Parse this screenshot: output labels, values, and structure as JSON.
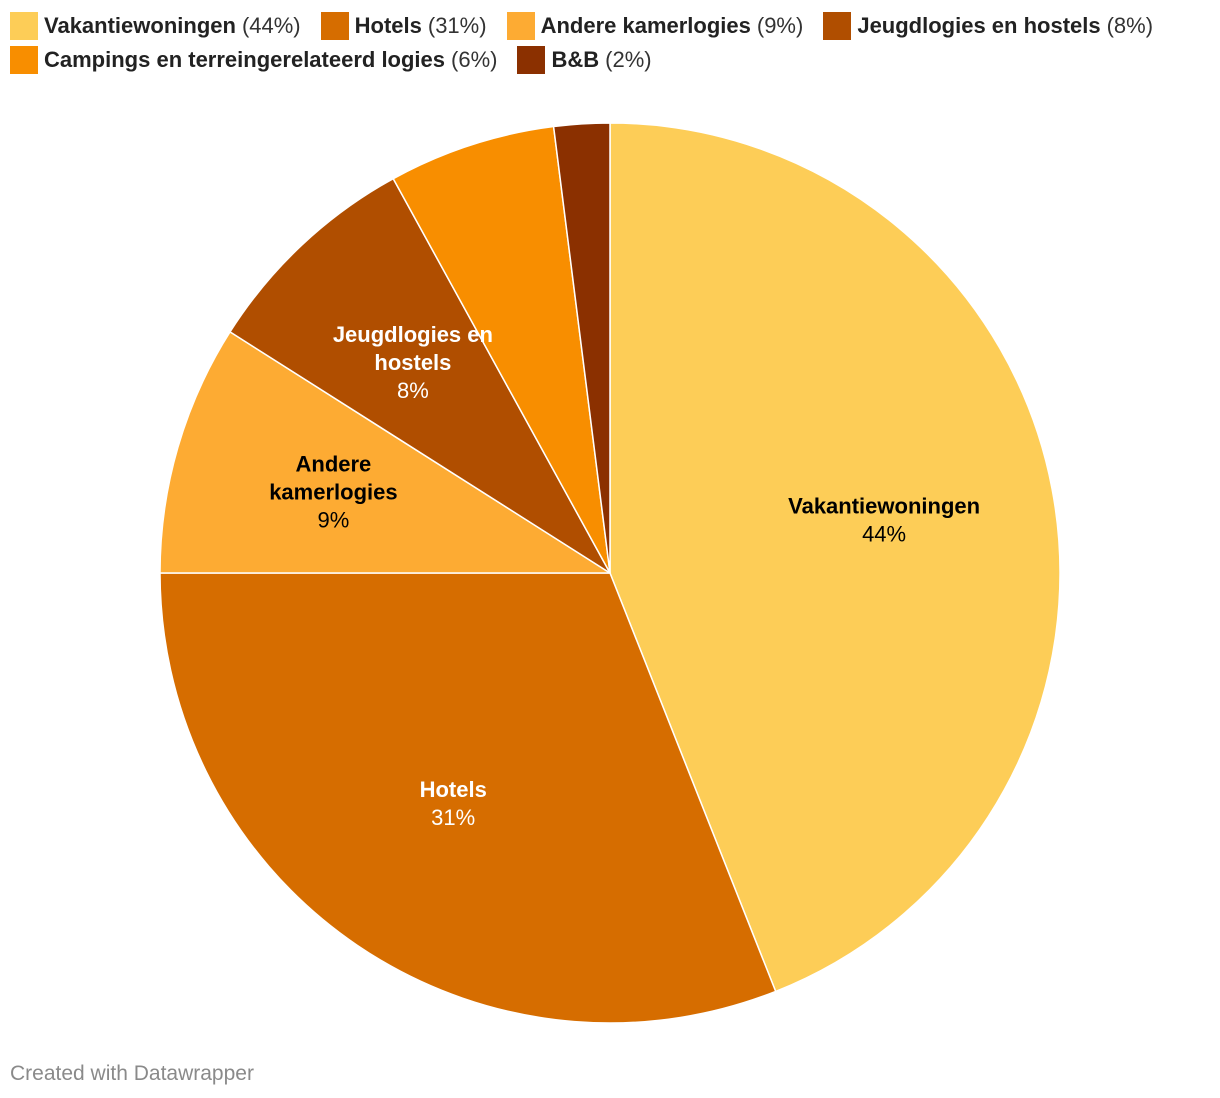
{
  "chart_data": {
    "type": "pie",
    "slices": [
      {
        "label": "Vakantiewoningen",
        "value": 44,
        "display": "44%",
        "legend_pct": "(44%)",
        "color": "#fdcd57",
        "label_color": "#000000",
        "label_lines": [
          "Vakantiewoningen"
        ]
      },
      {
        "label": "Hotels",
        "value": 31,
        "display": "31%",
        "legend_pct": "(31%)",
        "color": "#d66d00",
        "label_color": "#ffffff",
        "label_lines": [
          "Hotels"
        ]
      },
      {
        "label": "Andere kamerlogies",
        "value": 9,
        "display": "9%",
        "legend_pct": "(9%)",
        "color": "#fdab33",
        "label_color": "#000000",
        "label_lines": [
          "Andere",
          "kamerlogies"
        ]
      },
      {
        "label": "Jeugdlogies en hostels",
        "value": 8,
        "display": "8%",
        "legend_pct": "(8%)",
        "color": "#b04e00",
        "label_color": "#ffffff",
        "label_lines": [
          "Jeugdlogies en",
          "hostels"
        ]
      },
      {
        "label": "Campings en terreingerelateerd logies",
        "value": 6,
        "display": "6%",
        "legend_pct": "(6%)",
        "color": "#f88e00",
        "label_color": "#000000",
        "label_lines": []
      },
      {
        "label": "B&B",
        "value": 2,
        "display": "2%",
        "legend_pct": "(2%)",
        "color": "#8b3000",
        "label_color": "#ffffff",
        "label_lines": []
      }
    ]
  },
  "footer": {
    "credit": "Created with Datawrapper"
  }
}
